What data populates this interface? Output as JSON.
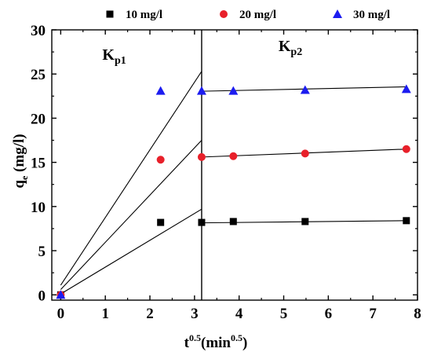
{
  "chart_data": {
    "type": "scatter",
    "xlabel": {
      "base": "t",
      "exp": "0.5",
      "unit_base": "(min",
      "unit_exp": "0.5",
      "unit_close": ")"
    },
    "ylabel": {
      "base": "q",
      "sub": "e",
      "unit": " (mg/l)"
    },
    "xlim": [
      -0.2,
      8.0
    ],
    "ylim": [
      -0.6,
      30
    ],
    "xticks": [
      0,
      1,
      2,
      3,
      4,
      5,
      6,
      7,
      8
    ],
    "yticks": [
      0,
      5,
      10,
      15,
      20,
      25,
      30
    ],
    "divider_x": 3.16,
    "annotations": [
      {
        "base": "K",
        "sub": "p1",
        "x": 1.2,
        "y": 26.6
      },
      {
        "base": "K",
        "sub": "p2",
        "x": 5.15,
        "y": 27.6
      }
    ],
    "series": [
      {
        "name": "10 mg/l",
        "marker": "square",
        "color": "#000000",
        "x": [
          0,
          2.24,
          3.16,
          3.87,
          5.48,
          7.75
        ],
        "y": [
          0,
          8.2,
          8.2,
          8.3,
          8.3,
          8.4
        ],
        "fit1": {
          "x": [
            0,
            3.16
          ],
          "y": [
            0.1,
            9.7
          ]
        },
        "fit2": {
          "x": [
            3.16,
            7.75
          ],
          "y": [
            8.15,
            8.4
          ]
        }
      },
      {
        "name": "20 mg/l",
        "marker": "circle",
        "color": "#e8202a",
        "x": [
          0,
          2.24,
          3.16,
          3.87,
          5.48,
          7.75
        ],
        "y": [
          0,
          15.3,
          15.6,
          15.7,
          16.0,
          16.5
        ],
        "fit1": {
          "x": [
            0,
            3.16
          ],
          "y": [
            0.6,
            17.5
          ]
        },
        "fit2": {
          "x": [
            3.16,
            7.75
          ],
          "y": [
            15.6,
            16.5
          ]
        }
      },
      {
        "name": "30 mg/l",
        "marker": "triangle",
        "color": "#1c1cf0",
        "x": [
          0,
          2.24,
          3.16,
          3.87,
          5.48,
          7.75
        ],
        "y": [
          0,
          23.1,
          23.1,
          23.1,
          23.2,
          23.3
        ],
        "fit1": {
          "x": [
            0,
            3.16
          ],
          "y": [
            1.1,
            25.3
          ]
        },
        "fit2": {
          "x": [
            3.16,
            7.75
          ],
          "y": [
            23.05,
            23.55
          ]
        }
      }
    ]
  }
}
